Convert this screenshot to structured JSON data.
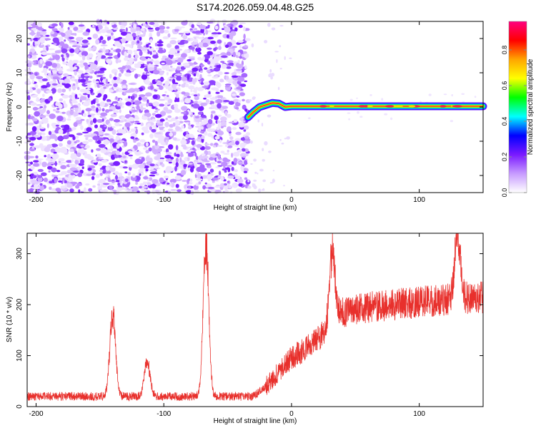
{
  "title": "S174.2026.059.04.48.G25",
  "chart_data": [
    {
      "type": "heatmap",
      "xlabel": "Height of straight line (km)",
      "ylabel": "Frequency (Hz)",
      "xlim": [
        -207,
        150
      ],
      "ylim": [
        -25,
        25
      ],
      "x_ticks": [
        -200,
        -100,
        0,
        100
      ],
      "x_tick_labels": [
        "-200",
        "-100",
        "0",
        "100"
      ],
      "y_ticks": [
        -20,
        -10,
        0,
        10,
        20
      ],
      "y_tick_labels": [
        "-20",
        "-10",
        "0",
        "10",
        "20"
      ],
      "noise_region_x": [
        -207,
        -34
      ],
      "trace": {
        "x": [
          -34,
          -30,
          -25,
          -20,
          -15,
          -10,
          -5,
          0,
          150
        ],
        "y": [
          -3.0,
          -1.5,
          0.0,
          0.6,
          1.2,
          1.0,
          0.0,
          0.2,
          0.2
        ]
      },
      "colorbar": {
        "label": "Normalized spectral amplitude",
        "range": [
          0,
          0.96
        ],
        "ticks": [
          0.0,
          0.2,
          0.4,
          0.6,
          0.8
        ],
        "tick_labels": [
          "0.0",
          "0.2",
          "0.4",
          "0.6",
          "0.8"
        ],
        "colors": [
          "#ffffff",
          "#c79bff",
          "#7a19ff",
          "#0000ff",
          "#00ffff",
          "#00ff00",
          "#ffff00",
          "#ffa500",
          "#ff0000",
          "#ff0080"
        ]
      },
      "grid": false
    },
    {
      "type": "line",
      "xlabel": "Height of straight line (km)",
      "ylabel": "SNR (10 * v/v)",
      "xlim": [
        -207,
        150
      ],
      "ylim": [
        0,
        340
      ],
      "x_ticks": [
        -200,
        -100,
        0,
        100
      ],
      "x_tick_labels": [
        "-200",
        "-100",
        "0",
        "100"
      ],
      "y_ticks": [
        0,
        100,
        200,
        300
      ],
      "y_tick_labels": [
        "0",
        "100",
        "200",
        "300"
      ],
      "color": "#e8302c",
      "baseline": {
        "x": [
          -207,
          -150,
          -30,
          -20,
          0,
          20,
          40,
          60,
          80,
          100,
          120,
          150
        ],
        "y": [
          20,
          20,
          20,
          40,
          95,
          130,
          185,
          195,
          200,
          205,
          210,
          215
        ]
      },
      "peaks": [
        {
          "x": -140,
          "y": 185
        },
        {
          "x": -113,
          "y": 90
        },
        {
          "x": -67,
          "y": 320
        },
        {
          "x": 32,
          "y": 305
        },
        {
          "x": 130,
          "y": 340
        }
      ],
      "grid": false
    }
  ]
}
